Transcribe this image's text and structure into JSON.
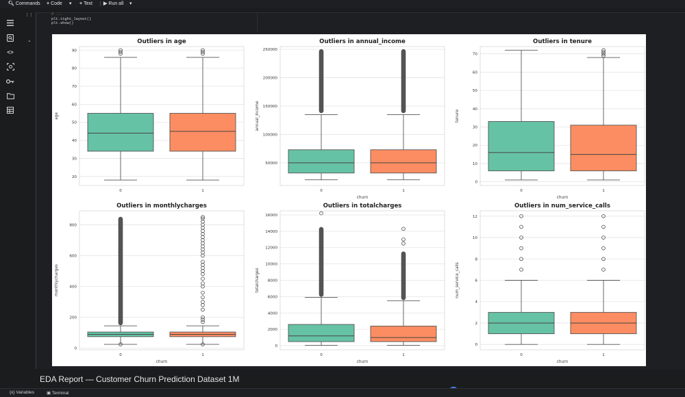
{
  "toolbar": {
    "commands_label": "Commands",
    "code_label": "Code",
    "text_label": "Text",
    "run_all_label": "Run all"
  },
  "sidebar": {
    "icons": [
      "table-of-contents-icon",
      "find-icon",
      "code-snippets-icon",
      "variables-icon",
      "secrets-icon",
      "files-icon",
      "terminal-grid-icon"
    ]
  },
  "cell": {
    "execution_count": "[ ]",
    "code_lines": [
      "# ...",
      "plt.tight_layout()",
      "plt.show()"
    ]
  },
  "figures": [
    {
      "title": "Outliers in age",
      "ylabel": "age",
      "xlabel": "",
      "ylim": [
        15,
        92
      ],
      "yticks": [
        20,
        30,
        40,
        50,
        60,
        70,
        80,
        90
      ],
      "ytick_labels": [
        "20",
        "30",
        "40",
        "50",
        "60",
        "70",
        "80",
        "90"
      ],
      "boxes": [
        {
          "cat": "0",
          "whislo": 18,
          "q1": 34,
          "med": 44,
          "q3": 55,
          "whishi": 86,
          "fliers": [
            88,
            89,
            90
          ]
        },
        {
          "cat": "1",
          "whislo": 18,
          "q1": 34,
          "med": 45,
          "q3": 55,
          "whishi": 86,
          "fliers": [
            88,
            89,
            90
          ]
        }
      ]
    },
    {
      "title": "Outliers in annual_income",
      "ylabel": "annual_income",
      "xlabel": "churn",
      "ylim": [
        10000,
        255000
      ],
      "yticks": [
        50000,
        100000,
        150000,
        200000,
        250000
      ],
      "ytick_labels": [
        "50000",
        "100000",
        "150000",
        "200000",
        "250000"
      ],
      "boxes": [
        {
          "cat": "0",
          "whislo": 20000,
          "q1": 32000,
          "med": 50000,
          "q3": 73000,
          "whishi": 135000,
          "flier_band": [
            138000,
            250000
          ]
        },
        {
          "cat": "1",
          "whislo": 20000,
          "q1": 32000,
          "med": 50000,
          "q3": 73000,
          "whishi": 135000,
          "flier_band": [
            138000,
            250000
          ]
        }
      ]
    },
    {
      "title": "Outliers in tenure",
      "ylabel": "tenure",
      "xlabel": "churn",
      "ylim": [
        -2,
        74
      ],
      "yticks": [
        0,
        10,
        20,
        30,
        40,
        50,
        60,
        70
      ],
      "ytick_labels": [
        "0",
        "10",
        "20",
        "30",
        "40",
        "50",
        "60",
        "70"
      ],
      "boxes": [
        {
          "cat": "0",
          "whislo": 1,
          "q1": 6,
          "med": 16,
          "q3": 33,
          "whishi": 72,
          "fliers": []
        },
        {
          "cat": "1",
          "whislo": 1,
          "q1": 6,
          "med": 15,
          "q3": 31,
          "whishi": 68,
          "fliers": [
            69,
            70,
            71,
            72
          ]
        }
      ]
    },
    {
      "title": "Outliers in monthlycharges",
      "ylabel": "monthlycharges",
      "xlabel": "churn",
      "ylim": [
        -10,
        890
      ],
      "yticks": [
        0,
        200,
        400,
        600,
        800
      ],
      "ytick_labels": [
        "0",
        "200",
        "400",
        "600",
        "800"
      ],
      "boxes": [
        {
          "cat": "0",
          "whislo": 25,
          "q1": 75,
          "med": 90,
          "q3": 105,
          "whishi": 145,
          "flier_band": [
            150,
            850
          ],
          "fliers": [
            25
          ]
        },
        {
          "cat": "1",
          "whislo": 25,
          "q1": 75,
          "med": 90,
          "q3": 105,
          "whishi": 145,
          "sparse_fliers": [
            170,
            185,
            200,
            250,
            280,
            300,
            330,
            360,
            400,
            420,
            450,
            480,
            500,
            520,
            540,
            560,
            600,
            620,
            640,
            660,
            680,
            700,
            720,
            740,
            760,
            780,
            800,
            820,
            840,
            850
          ],
          "fliers": [
            25
          ]
        }
      ]
    },
    {
      "title": "Outliers in totalcharges",
      "ylabel": "totalcharges",
      "xlabel": "churn",
      "ylim": [
        -500,
        16500
      ],
      "yticks": [
        0,
        2000,
        4000,
        6000,
        8000,
        10000,
        12000,
        14000,
        16000
      ],
      "ytick_labels": [
        "0",
        "2000",
        "4000",
        "6000",
        "8000",
        "10000",
        "12000",
        "14000",
        "16000"
      ],
      "boxes": [
        {
          "cat": "0",
          "whislo": 50,
          "q1": 500,
          "med": 1200,
          "q3": 2600,
          "whishi": 5900,
          "flier_band": [
            6000,
            14500
          ],
          "fliers": [
            16200
          ]
        },
        {
          "cat": "1",
          "whislo": 50,
          "q1": 500,
          "med": 1000,
          "q3": 2400,
          "whishi": 5500,
          "flier_band": [
            5600,
            11500
          ],
          "fliers": [
            12500,
            13000,
            14300
          ]
        }
      ]
    },
    {
      "title": "Outliers in num_service_calls",
      "ylabel": "num_service_calls",
      "xlabel": "churn",
      "ylim": [
        -0.5,
        12.5
      ],
      "yticks": [
        0,
        2,
        4,
        6,
        8,
        10,
        12
      ],
      "ytick_labels": [
        "0",
        "2",
        "4",
        "6",
        "8",
        "10",
        "12"
      ],
      "boxes": [
        {
          "cat": "0",
          "whislo": 0,
          "q1": 1,
          "med": 2,
          "q3": 3,
          "whishi": 6,
          "fliers": [
            7,
            8,
            9,
            10,
            11,
            12
          ]
        },
        {
          "cat": "1",
          "whislo": 0,
          "q1": 1,
          "med": 2,
          "q3": 3,
          "whishi": 6,
          "fliers": [
            7,
            8,
            9,
            10,
            11,
            12
          ]
        }
      ]
    }
  ],
  "colors": {
    "box0": "#66c2a5",
    "box1": "#fc8d62"
  },
  "markdown_heading": "EDA Report — Customer Churn Prediction Dataset 1M",
  "bottombar": {
    "variables_label": "Variables",
    "terminal_label": "Terminal"
  }
}
